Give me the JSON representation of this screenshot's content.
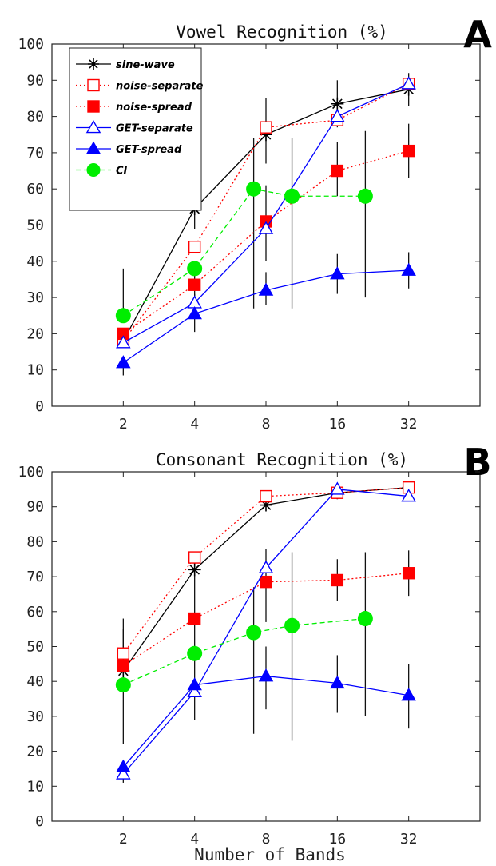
{
  "figure": {
    "xlabel": "Number of Bands"
  },
  "legend_entries": [
    {
      "name": "sine-wave",
      "color": "#000000",
      "marker": "star",
      "dash": "solid",
      "fill": "none"
    },
    {
      "name": "noise-separate",
      "color": "#ff0000",
      "marker": "square",
      "dash": "dotted",
      "fill": "none"
    },
    {
      "name": "noise-spread",
      "color": "#ff0000",
      "marker": "square",
      "dash": "dotted",
      "fill": "#ff0000"
    },
    {
      "name": "GET-separate",
      "color": "#0000ff",
      "marker": "triangle",
      "dash": "solid",
      "fill": "none"
    },
    {
      "name": "GET-spread",
      "color": "#0000ff",
      "marker": "triangle",
      "dash": "solid",
      "fill": "#0000ff"
    },
    {
      "name": "CI",
      "color": "#00ee00",
      "marker": "circle",
      "dash": "dashed",
      "fill": "#00ee00"
    }
  ],
  "chart_data": [
    {
      "panel_label": "A",
      "type": "line",
      "title": "Vowel Recognition (%)",
      "xlabel": "",
      "ylabel": "",
      "x_scale": "log2",
      "x_ticks": [
        2,
        4,
        8,
        16,
        32
      ],
      "x_tick_labels": [
        "2",
        "4",
        "8",
        "16",
        "32"
      ],
      "xlim": [
        1,
        64
      ],
      "ylim": [
        0,
        100
      ],
      "y_ticks": [
        0,
        10,
        20,
        30,
        40,
        50,
        60,
        70,
        80,
        90,
        100
      ],
      "legend_position": "top-left",
      "grid": false,
      "series": [
        {
          "name": "sine-wave",
          "x": [
            2,
            4,
            8,
            16,
            32
          ],
          "y": [
            18,
            54.5,
            75,
            83.5,
            87.5
          ],
          "err_low": [
            null,
            49,
            67,
            77,
            83
          ],
          "err_high": [
            null,
            61,
            85,
            90,
            92
          ]
        },
        {
          "name": "noise-separate",
          "x": [
            2,
            4,
            8,
            16,
            32
          ],
          "y": [
            18,
            44,
            77,
            79,
            89
          ],
          "err_low": [
            null,
            null,
            null,
            null,
            null
          ],
          "err_high": [
            null,
            null,
            null,
            null,
            null
          ]
        },
        {
          "name": "noise-spread",
          "x": [
            2,
            4,
            8,
            16,
            32
          ],
          "y": [
            20,
            33.5,
            51,
            65,
            70.5
          ],
          "err_low": [
            null,
            28,
            40,
            58,
            63
          ],
          "err_high": [
            null,
            40,
            61,
            73,
            78
          ]
        },
        {
          "name": "GET-separate",
          "x": [
            2,
            4,
            8,
            16,
            32
          ],
          "y": [
            17.5,
            28.5,
            49,
            80,
            89
          ],
          "err_low": [
            null,
            null,
            null,
            null,
            null
          ],
          "err_high": [
            null,
            null,
            null,
            null,
            null
          ]
        },
        {
          "name": "GET-spread",
          "x": [
            2,
            4,
            8,
            16,
            32
          ],
          "y": [
            12,
            25.5,
            32,
            36.5,
            37.5
          ],
          "err_low": [
            8.5,
            20.5,
            28,
            31,
            32.5
          ],
          "err_high": [
            null,
            31,
            37,
            42,
            42.5
          ]
        },
        {
          "name": "CI",
          "x": [
            2,
            4,
            7.1,
            10.3,
            21
          ],
          "y": [
            25,
            38,
            60,
            58,
            58
          ],
          "err_low": [
            null,
            null,
            27,
            27,
            30
          ],
          "err_high": [
            38,
            null,
            74,
            74,
            76
          ]
        }
      ]
    },
    {
      "panel_label": "B",
      "type": "line",
      "title": "Consonant Recognition (%)",
      "xlabel": "Number of Bands",
      "ylabel": "",
      "x_scale": "log2",
      "x_ticks": [
        2,
        4,
        8,
        16,
        32
      ],
      "x_tick_labels": [
        "2",
        "4",
        "8",
        "16",
        "32"
      ],
      "xlim": [
        1,
        64
      ],
      "ylim": [
        0,
        100
      ],
      "y_ticks": [
        0,
        10,
        20,
        30,
        40,
        50,
        60,
        70,
        80,
        90,
        100
      ],
      "grid": false,
      "series": [
        {
          "name": "sine-wave",
          "x": [
            2,
            4,
            8,
            16,
            32
          ],
          "y": [
            43,
            72,
            90.5,
            94,
            95.5
          ],
          "err_low": [
            null,
            null,
            null,
            null,
            null
          ],
          "err_high": [
            null,
            null,
            null,
            null,
            null
          ]
        },
        {
          "name": "noise-separate",
          "x": [
            2,
            4,
            8,
            16,
            32
          ],
          "y": [
            48,
            75.5,
            93,
            94,
            95.5
          ],
          "err_low": [
            null,
            null,
            null,
            null,
            null
          ],
          "err_high": [
            null,
            null,
            null,
            null,
            null
          ]
        },
        {
          "name": "noise-spread",
          "x": [
            2,
            4,
            8,
            16,
            32
          ],
          "y": [
            44.5,
            58,
            68.5,
            69,
            71
          ],
          "err_low": [
            null,
            48,
            57,
            63,
            64.5
          ],
          "err_high": [
            58,
            71,
            78,
            75,
            77.5
          ]
        },
        {
          "name": "GET-separate",
          "x": [
            2,
            4,
            8,
            16,
            32
          ],
          "y": [
            13.5,
            37,
            72.5,
            95,
            93
          ],
          "err_low": [
            null,
            null,
            null,
            null,
            null
          ],
          "err_high": [
            null,
            null,
            null,
            null,
            null
          ]
        },
        {
          "name": "GET-spread",
          "x": [
            2,
            4,
            8,
            16,
            32
          ],
          "y": [
            15.5,
            39,
            41.5,
            39.5,
            36
          ],
          "err_low": [
            11,
            29,
            32,
            31,
            26.5
          ],
          "err_high": [
            null,
            49,
            50,
            47.5,
            45
          ]
        },
        {
          "name": "CI",
          "x": [
            2,
            4,
            7.1,
            10.3,
            21
          ],
          "y": [
            39,
            48,
            54,
            56,
            58
          ],
          "err_low": [
            22,
            null,
            25,
            23,
            30
          ],
          "err_high": [
            55,
            null,
            67,
            77,
            77
          ]
        }
      ]
    }
  ]
}
